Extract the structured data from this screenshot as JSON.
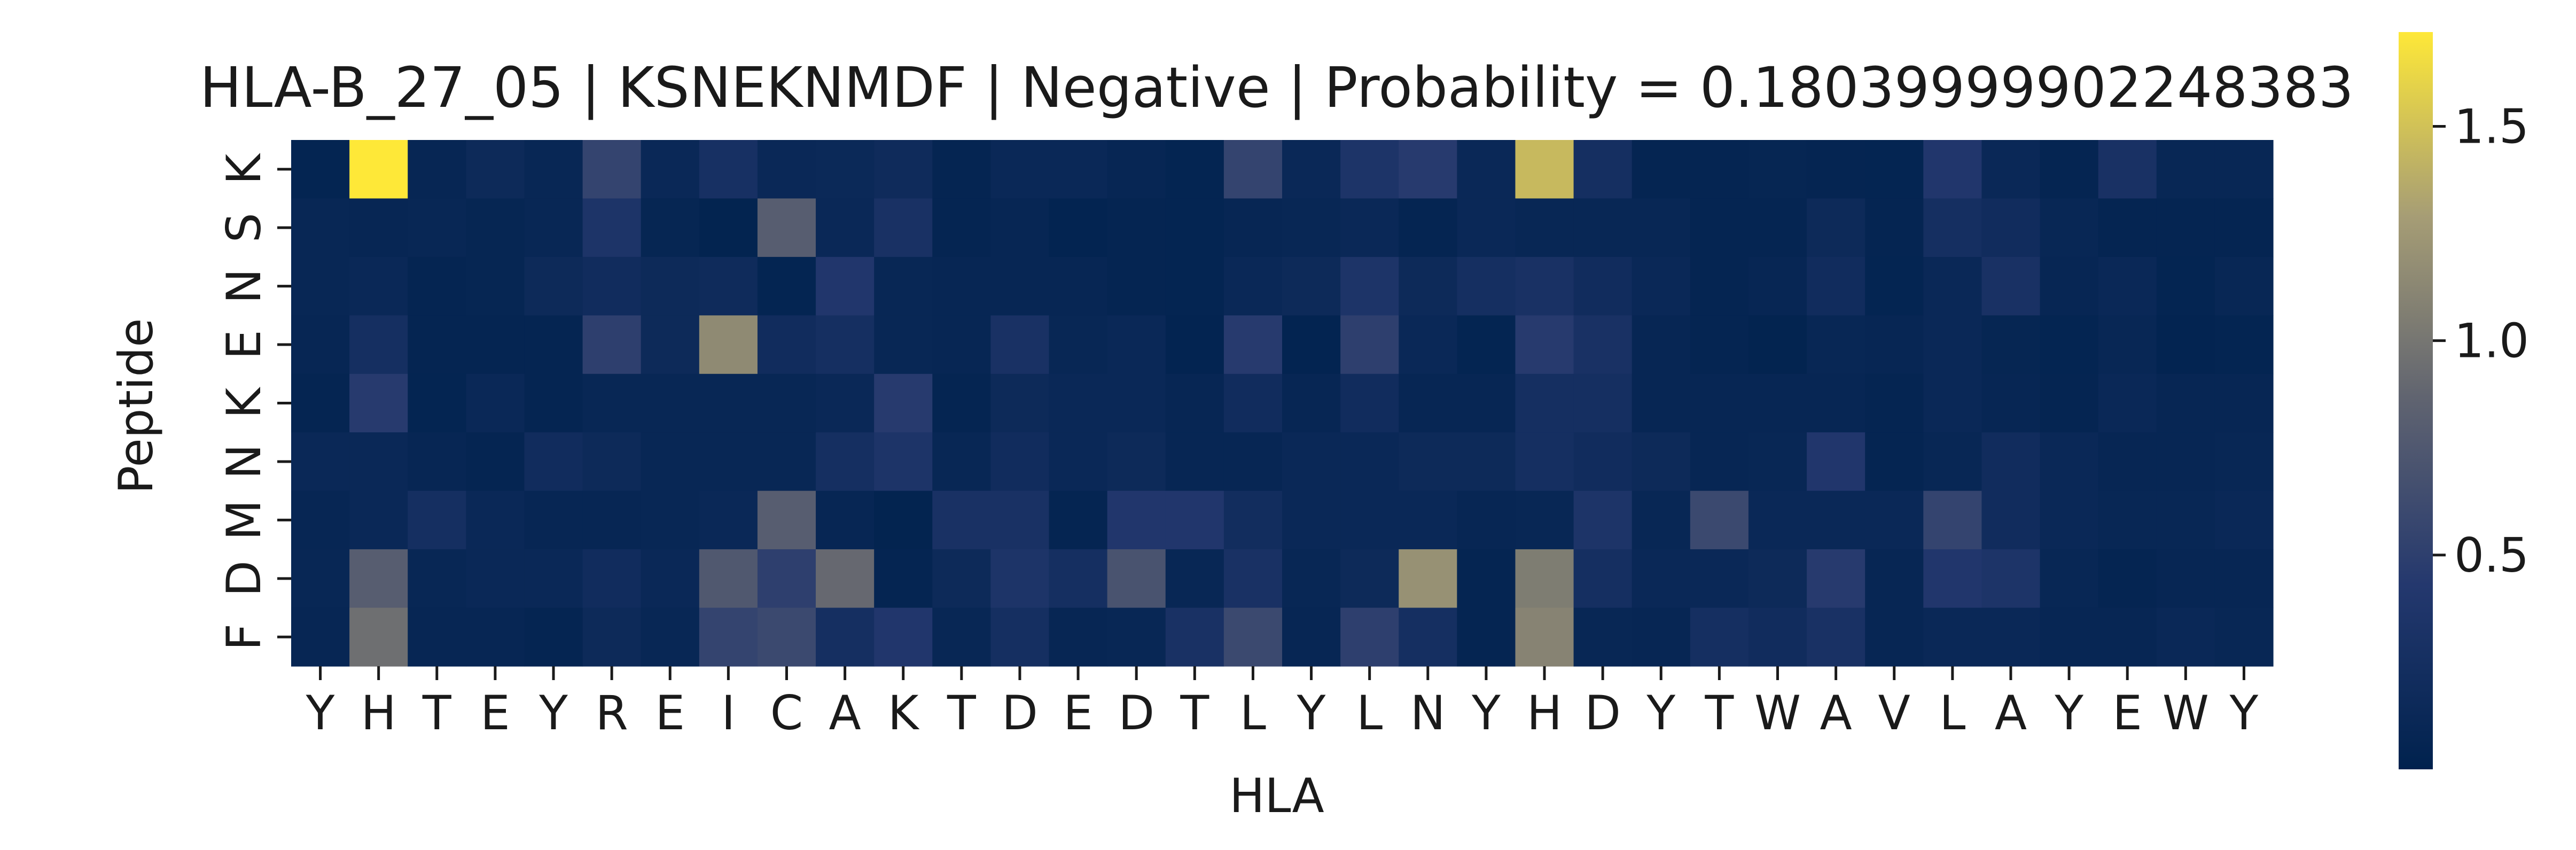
{
  "chart_data": {
    "type": "heatmap",
    "title": "HLA-B_27_05 | KSNEKNMDF | Negative | Probability = 0.18039999902248383",
    "xlabel": "HLA",
    "ylabel": "Peptide",
    "x_ticklabels": [
      "Y",
      "H",
      "T",
      "E",
      "Y",
      "R",
      "E",
      "I",
      "C",
      "A",
      "K",
      "T",
      "D",
      "E",
      "D",
      "T",
      "L",
      "Y",
      "L",
      "N",
      "Y",
      "H",
      "D",
      "Y",
      "T",
      "W",
      "A",
      "V",
      "L",
      "A",
      "Y",
      "E",
      "W",
      "Y"
    ],
    "y_ticklabels": [
      "K",
      "S",
      "N",
      "E",
      "K",
      "N",
      "M",
      "D",
      "F"
    ],
    "colormap": "cividis",
    "colorbar": {
      "vmin": 0.0,
      "vmax": 1.72,
      "ticks": [
        0.5,
        1.0,
        1.5
      ],
      "tick_labels": [
        "0.5",
        "1.0",
        "1.5"
      ]
    },
    "values": [
      [
        0.05,
        1.72,
        0.08,
        0.15,
        0.1,
        0.55,
        0.12,
        0.28,
        0.12,
        0.13,
        0.18,
        0.06,
        0.12,
        0.12,
        0.08,
        0.05,
        0.55,
        0.12,
        0.35,
        0.45,
        0.12,
        1.45,
        0.25,
        0.06,
        0.06,
        0.07,
        0.06,
        0.05,
        0.4,
        0.12,
        0.06,
        0.3,
        0.1,
        0.1
      ],
      [
        0.1,
        0.08,
        0.1,
        0.07,
        0.1,
        0.35,
        0.07,
        0.03,
        0.8,
        0.12,
        0.3,
        0.06,
        0.08,
        0.04,
        0.06,
        0.05,
        0.08,
        0.1,
        0.12,
        0.06,
        0.12,
        0.1,
        0.1,
        0.1,
        0.06,
        0.06,
        0.15,
        0.06,
        0.25,
        0.2,
        0.1,
        0.06,
        0.06,
        0.06
      ],
      [
        0.1,
        0.12,
        0.06,
        0.07,
        0.15,
        0.2,
        0.15,
        0.18,
        0.05,
        0.4,
        0.1,
        0.08,
        0.08,
        0.08,
        0.06,
        0.05,
        0.12,
        0.15,
        0.35,
        0.15,
        0.25,
        0.3,
        0.2,
        0.12,
        0.06,
        0.08,
        0.2,
        0.05,
        0.12,
        0.3,
        0.08,
        0.12,
        0.05,
        0.1
      ],
      [
        0.08,
        0.25,
        0.06,
        0.06,
        0.06,
        0.5,
        0.15,
        1.15,
        0.2,
        0.25,
        0.1,
        0.08,
        0.3,
        0.1,
        0.12,
        0.04,
        0.45,
        0.04,
        0.5,
        0.12,
        0.05,
        0.45,
        0.3,
        0.08,
        0.06,
        0.03,
        0.1,
        0.08,
        0.12,
        0.07,
        0.05,
        0.1,
        0.04,
        0.05
      ],
      [
        0.06,
        0.45,
        0.05,
        0.12,
        0.06,
        0.1,
        0.1,
        0.1,
        0.1,
        0.12,
        0.45,
        0.06,
        0.15,
        0.12,
        0.12,
        0.08,
        0.2,
        0.08,
        0.2,
        0.08,
        0.08,
        0.25,
        0.25,
        0.08,
        0.08,
        0.08,
        0.08,
        0.06,
        0.12,
        0.08,
        0.06,
        0.12,
        0.08,
        0.08
      ],
      [
        0.12,
        0.12,
        0.08,
        0.06,
        0.2,
        0.15,
        0.1,
        0.1,
        0.1,
        0.25,
        0.35,
        0.1,
        0.2,
        0.12,
        0.15,
        0.08,
        0.08,
        0.12,
        0.12,
        0.15,
        0.15,
        0.25,
        0.2,
        0.15,
        0.08,
        0.1,
        0.4,
        0.06,
        0.1,
        0.2,
        0.12,
        0.08,
        0.08,
        0.1
      ],
      [
        0.08,
        0.12,
        0.25,
        0.12,
        0.08,
        0.08,
        0.1,
        0.12,
        0.8,
        0.08,
        0.03,
        0.3,
        0.3,
        0.06,
        0.4,
        0.4,
        0.22,
        0.12,
        0.12,
        0.12,
        0.08,
        0.1,
        0.35,
        0.1,
        0.6,
        0.12,
        0.12,
        0.12,
        0.55,
        0.2,
        0.12,
        0.1,
        0.1,
        0.12
      ],
      [
        0.1,
        0.8,
        0.1,
        0.12,
        0.12,
        0.2,
        0.12,
        0.75,
        0.5,
        0.9,
        0.06,
        0.15,
        0.35,
        0.25,
        0.7,
        0.1,
        0.3,
        0.1,
        0.15,
        1.2,
        0.06,
        1.05,
        0.25,
        0.12,
        0.12,
        0.15,
        0.45,
        0.08,
        0.4,
        0.35,
        0.1,
        0.06,
        0.08,
        0.08
      ],
      [
        0.08,
        0.95,
        0.08,
        0.08,
        0.06,
        0.15,
        0.1,
        0.55,
        0.6,
        0.25,
        0.4,
        0.1,
        0.25,
        0.08,
        0.1,
        0.3,
        0.6,
        0.08,
        0.5,
        0.25,
        0.06,
        1.1,
        0.1,
        0.08,
        0.25,
        0.2,
        0.3,
        0.08,
        0.12,
        0.12,
        0.08,
        0.08,
        0.12,
        0.1
      ]
    ]
  }
}
